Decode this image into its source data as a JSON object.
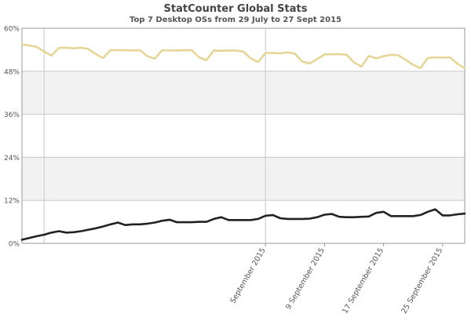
{
  "title": "StatCounter Global Stats",
  "subtitle": "Top 7 Desktop OSs from 29 July to 27 Sept 2015",
  "colors": {
    "band": "#f2f2f2",
    "grid": "#c8c8c8",
    "axis": "#999999",
    "series_yellow": "#e6d596",
    "series_black": "#222222"
  },
  "chart_data": {
    "type": "line",
    "ylim": [
      0,
      60
    ],
    "y_ticks": [
      "0%",
      "12%",
      "24%",
      "36%",
      "48%",
      "60%"
    ],
    "x_tick_labels": [
      {
        "label": "September 2015",
        "index": 33
      },
      {
        "label": "9 September 2015",
        "index": 41
      },
      {
        "label": "17 September 2015",
        "index": 49
      },
      {
        "label": "25 September 2015",
        "index": 57
      }
    ],
    "x_marker_indices": [
      3,
      33
    ],
    "num_points": 61,
    "series": [
      {
        "color_key": "series_yellow",
        "values": [
          55.5,
          55.2,
          54.8,
          53.5,
          52.4,
          54.5,
          54.6,
          54.4,
          54.6,
          54.2,
          52.8,
          51.7,
          53.9,
          53.9,
          53.9,
          53.8,
          53.9,
          52.2,
          51.5,
          53.9,
          53.8,
          53.8,
          53.9,
          53.9,
          51.9,
          51.1,
          53.8,
          53.7,
          53.8,
          53.8,
          53.5,
          51.6,
          50.6,
          53.1,
          53.1,
          53.0,
          53.3,
          52.9,
          50.7,
          50.2,
          51.4,
          52.7,
          52.7,
          52.8,
          52.6,
          50.5,
          49.3,
          52.3,
          51.6,
          52.2,
          52.6,
          52.5,
          51.2,
          49.8,
          48.9,
          51.7,
          51.9,
          51.8,
          51.9,
          50.1,
          48.9
        ]
      },
      {
        "color_key": "series_black",
        "values": [
          1.0,
          1.5,
          2.0,
          2.4,
          3.0,
          3.4,
          3.0,
          3.1,
          3.4,
          3.8,
          4.2,
          4.7,
          5.3,
          5.8,
          5.1,
          5.3,
          5.3,
          5.5,
          5.8,
          6.3,
          6.6,
          5.9,
          5.9,
          5.9,
          6.0,
          6.0,
          6.8,
          7.3,
          6.5,
          6.5,
          6.5,
          6.5,
          6.8,
          7.7,
          7.9,
          7.0,
          6.8,
          6.8,
          6.8,
          6.9,
          7.3,
          8.0,
          8.2,
          7.4,
          7.3,
          7.3,
          7.4,
          7.5,
          8.5,
          8.8,
          7.6,
          7.6,
          7.6,
          7.6,
          7.9,
          8.8,
          9.5,
          7.8,
          7.8,
          8.1,
          8.3
        ]
      }
    ]
  }
}
